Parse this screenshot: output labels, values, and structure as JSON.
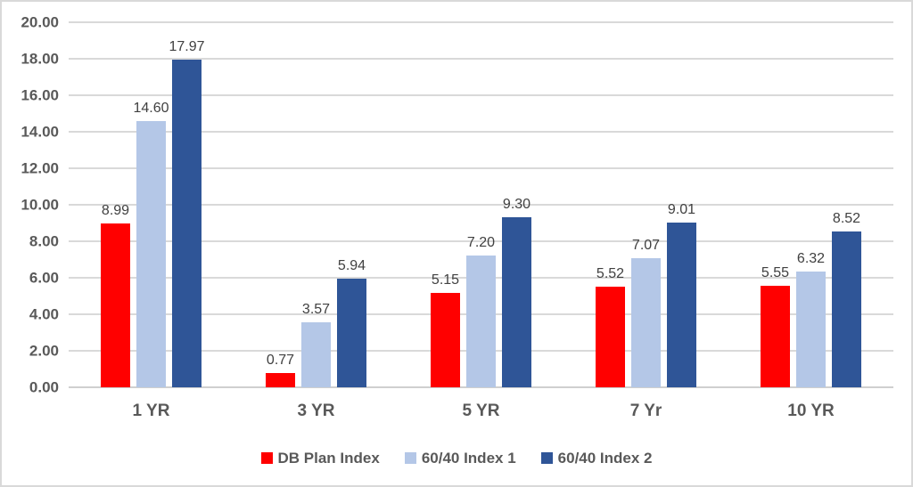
{
  "colors": {
    "background": "#ffffff",
    "frame_border": "#d9d9d9",
    "gridline": "#d9d9d9",
    "axis_line": "#cfcfcf",
    "axis_text": "#595959",
    "data_label_text": "#404040"
  },
  "chart_data": {
    "type": "bar",
    "title": "",
    "xlabel": "",
    "ylabel": "",
    "categories": [
      "1 YR",
      "3 YR",
      "5 YR",
      "7 Yr",
      "10 YR"
    ],
    "series": [
      {
        "name": "DB Plan Index",
        "color": "#ff0000",
        "values": [
          8.99,
          0.77,
          5.15,
          5.52,
          5.55
        ]
      },
      {
        "name": "60/40 Index 1",
        "color": "#b4c7e7",
        "values": [
          14.6,
          3.57,
          7.2,
          7.07,
          6.32
        ]
      },
      {
        "name": "60/40 Index 2",
        "color": "#2f5597",
        "values": [
          17.97,
          5.94,
          9.3,
          9.01,
          8.52
        ]
      }
    ],
    "data_labels": true,
    "data_label_decimals": 2,
    "ylim": [
      0,
      20
    ],
    "ytick_step": 2,
    "ytick_labels": [
      "0.00",
      "2.00",
      "4.00",
      "6.00",
      "8.00",
      "10.00",
      "12.00",
      "14.00",
      "16.00",
      "18.00",
      "20.00"
    ],
    "grid": true,
    "legend_position": "bottom"
  }
}
